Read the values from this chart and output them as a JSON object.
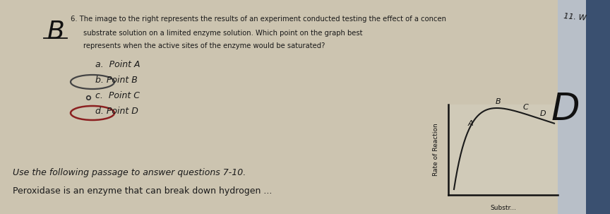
{
  "bg_color": "#ccc4b0",
  "text_color": "#1a1a1a",
  "answer_letter": "B",
  "q6_line1": "6. The image to the right represents the results of an experiment conducted testing the effect of a concen",
  "q6_line2": "   substrate solution on a limited enzyme solution. Which point on the graph best",
  "q6_line3": "   represents when the active sites of the enzyme would be saturated?",
  "option_a": "a.  Point A",
  "option_b": "b. Point B",
  "option_c": "c.  Point C",
  "option_d": "d. Point D",
  "passage_line1": "Use the following passage to answer questions 7-10.",
  "passage_line2": "Peroxidase is an enzyme that can break down hydrogen ...",
  "graph_ylabel": "Rate of Reaction",
  "graph_xlabel": "Substr...",
  "graph_points": [
    "A",
    "B",
    "C",
    "D"
  ],
  "graph_point_x": [
    0.22,
    0.5,
    0.68,
    0.83
  ],
  "curve_color": "#1a1a1a",
  "circle_b_color": "#444444",
  "circle_d_color": "#8b2020",
  "next_label": "11. W",
  "graph_bg": "#cac2ae",
  "page_right_color": "#4a6080"
}
